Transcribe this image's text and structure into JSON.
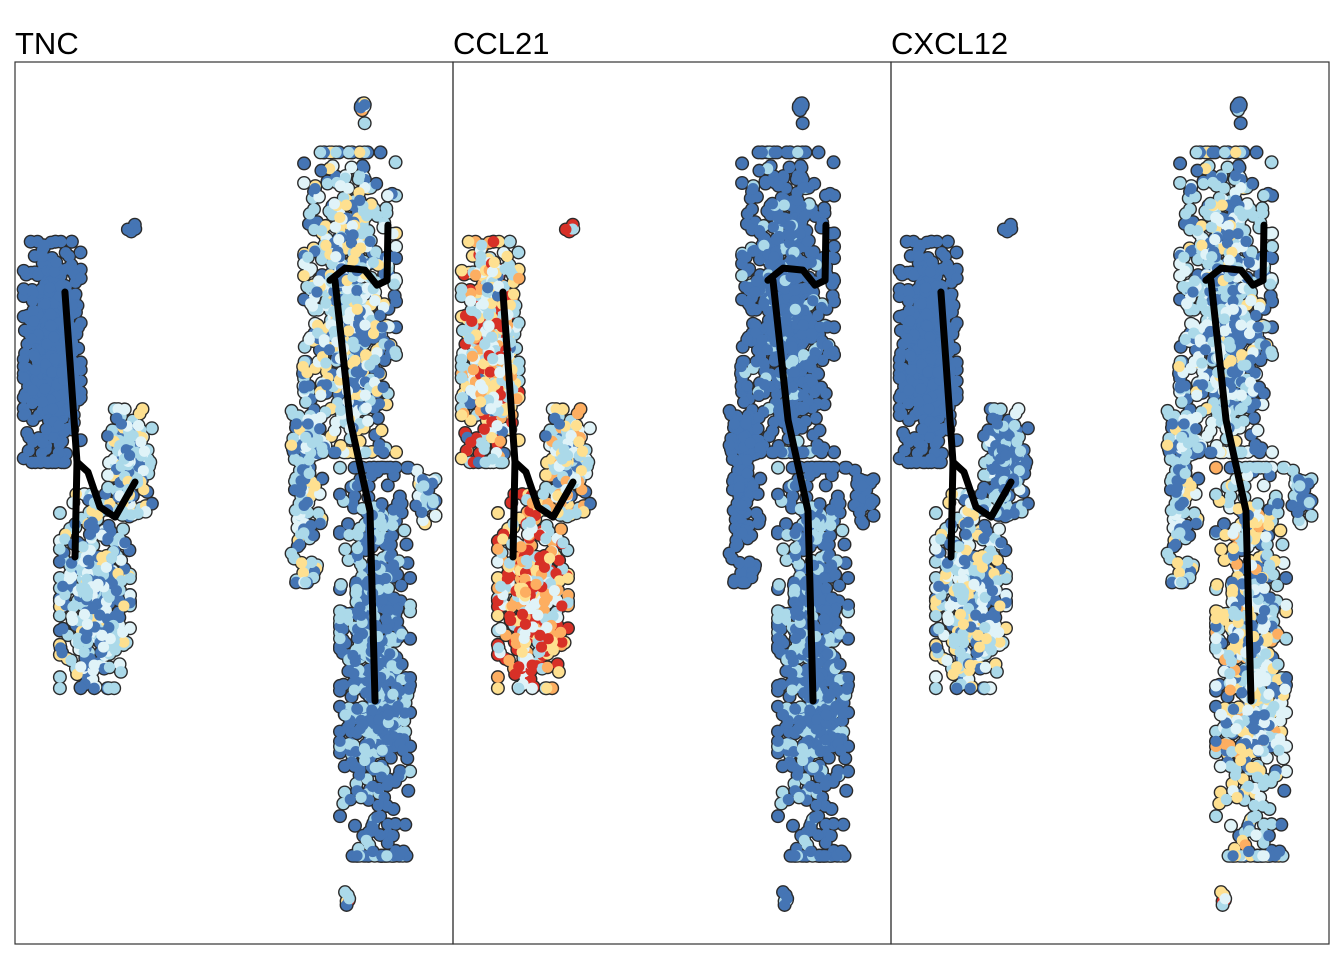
{
  "chart_data": {
    "type": "scatter",
    "description_free": true,
    "xlim": [
      -10,
      10
    ],
    "ylim": [
      -20,
      20
    ],
    "grid": false,
    "legend": "none",
    "color_scale": [
      "#4575b4",
      "#abd9e9",
      "#e0f3f8",
      "#fee090",
      "#fdae61",
      "#d73027"
    ],
    "point_outline": "#2b2b2b",
    "trajectory_color": "#000000",
    "panels": [
      {
        "title": "TNC"
      },
      {
        "title": "CCL21"
      },
      {
        "title": "CXCL12"
      }
    ],
    "clusters": [
      {
        "center": [
          -8.3,
          6.85
        ],
        "spread": [
          0.65,
          2.5
        ],
        "n": 520,
        "expression": {
          "TNC": 0.05,
          "CCL21": 0.55,
          "CXCL12": 0.05
        }
      },
      {
        "center": [
          -4.75,
          1.86
        ],
        "spread": [
          0.5,
          1.2
        ],
        "n": 180,
        "expression": {
          "TNC": 0.35,
          "CCL21": 0.45,
          "CXCL12": 0.2
        }
      },
      {
        "center": [
          -6.35,
          -4.0
        ],
        "spread": [
          0.8,
          2.2
        ],
        "n": 380,
        "expression": {
          "TNC": 0.3,
          "CCL21": 0.62,
          "CXCL12": 0.35
        }
      },
      {
        "center": [
          -4.66,
          12.38
        ],
        "spread": [
          0.1,
          0.2
        ],
        "n": 6,
        "expression": {
          "TNC": 0.05,
          "CCL21": 0.6,
          "CXCL12": 0.05
        }
      },
      {
        "center": [
          5.3,
          9.1
        ],
        "spread": [
          1.05,
          3.4
        ],
        "n": 650,
        "expression": {
          "TNC": 0.35,
          "CCL21": 0.08,
          "CXCL12": 0.3
        }
      },
      {
        "center": [
          6.44,
          -7.2
        ],
        "spread": [
          0.8,
          4.4
        ],
        "n": 650,
        "expression": {
          "TNC": 0.15,
          "CCL21": 0.12,
          "CXCL12": 0.38
        }
      },
      {
        "center": [
          3.33,
          1.4
        ],
        "spread": [
          0.35,
          2.5
        ],
        "n": 160,
        "expression": {
          "TNC": 0.3,
          "CCL21": 0.05,
          "CXCL12": 0.3
        }
      },
      {
        "center": [
          5.84,
          17.7
        ],
        "spread": [
          0.1,
          0.4
        ],
        "n": 8,
        "expression": {
          "TNC": 0.4,
          "CCL21": 0.05,
          "CXCL12": 0.1
        }
      },
      {
        "center": [
          5.2,
          -17.7
        ],
        "spread": [
          0.1,
          0.3
        ],
        "n": 6,
        "expression": {
          "TNC": 0.5,
          "CCL21": 0.2,
          "CXCL12": 0.8
        }
      },
      {
        "center": [
          8.7,
          0.27
        ],
        "spread": [
          0.25,
          0.6
        ],
        "n": 30,
        "expression": {
          "TNC": 0.3,
          "CCL21": 0.0,
          "CXCL12": 0.2
        }
      }
    ],
    "trajectories": [
      [
        [
          -7.72,
          9.57
        ],
        [
          -7.49,
          6.4
        ],
        [
          -7.17,
          1.86
        ],
        [
          -7.26,
          -2.45
        ]
      ],
      [
        [
          -7.17,
          1.86
        ],
        [
          -6.67,
          1.41
        ],
        [
          -6.12,
          -0.18
        ],
        [
          -5.43,
          -0.64
        ],
        [
          -4.52,
          0.95
        ]
      ],
      [
        [
          4.38,
          10.1
        ],
        [
          5.07,
          10.65
        ],
        [
          5.98,
          10.56
        ],
        [
          6.53,
          9.88
        ],
        [
          6.99,
          10.1
        ],
        [
          7.03,
          12.6
        ]
      ],
      [
        [
          4.61,
          10.1
        ],
        [
          5.3,
          3.76
        ],
        [
          6.21,
          -0.36
        ],
        [
          6.44,
          -8.98
        ]
      ]
    ]
  }
}
